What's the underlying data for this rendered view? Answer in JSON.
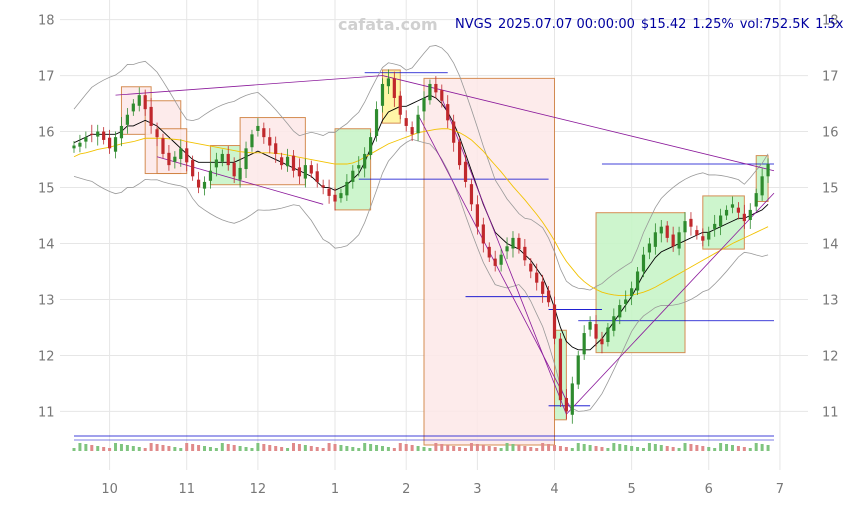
{
  "watermark": "cafata.com",
  "header": {
    "ticker": "NVGS",
    "datetime": "2025.07.07 00:00:00",
    "price": "$15.42",
    "change": "1.25%",
    "volume": "vol:752.5K",
    "ratio": "1.5x"
  },
  "colors": {
    "up": "#2e8b2e",
    "down": "#c0282c",
    "ma_short": "#000000",
    "ma_long": "#f2c200",
    "bollinger": "#999999",
    "trend": "#8b1a9b",
    "level": "#0000cc",
    "box_up_fill": "#c8f5c8",
    "box_down_fill": "#fde9e9",
    "box_neutral_fill": "#fff59e",
    "box_edge": "#d08040",
    "header_text": "#0000a0"
  },
  "chart_data": {
    "type": "candlestick",
    "ylim": [
      10.4,
      18.1
    ],
    "xlim": [
      0,
      118
    ],
    "y_ticks": [
      "11",
      "12",
      "13",
      "14",
      "15",
      "16",
      "17",
      "18"
    ],
    "y_tick_values": [
      11,
      12,
      13,
      14,
      15,
      16,
      17,
      18
    ],
    "x_ticks": [
      "10",
      "11",
      "12",
      "1",
      "2",
      "3",
      "4",
      "5",
      "6",
      "7"
    ],
    "x_tick_values": [
      6,
      19,
      31,
      44,
      56,
      68,
      81,
      94,
      107,
      119
    ],
    "grid": true,
    "close": [
      15.75,
      15.8,
      15.9,
      15.95,
      16.0,
      15.85,
      15.7,
      15.9,
      16.1,
      16.3,
      16.5,
      16.65,
      16.4,
      16.1,
      15.9,
      15.6,
      15.4,
      15.55,
      15.7,
      15.45,
      15.2,
      15.0,
      15.1,
      15.3,
      15.5,
      15.6,
      15.4,
      15.2,
      15.35,
      15.7,
      15.95,
      16.1,
      15.9,
      15.75,
      15.6,
      15.4,
      15.55,
      15.3,
      15.2,
      15.4,
      15.25,
      15.1,
      15.0,
      14.85,
      14.75,
      14.9,
      15.1,
      15.3,
      15.4,
      15.6,
      15.9,
      16.4,
      16.85,
      16.95,
      16.6,
      16.3,
      16.1,
      15.95,
      16.3,
      16.6,
      16.85,
      16.7,
      16.55,
      16.2,
      15.8,
      15.4,
      15.1,
      14.7,
      14.3,
      14.0,
      13.75,
      13.6,
      13.8,
      13.95,
      14.1,
      13.9,
      13.7,
      13.5,
      13.3,
      13.1,
      12.95,
      12.3,
      11.2,
      11.0,
      11.5,
      12.0,
      12.4,
      12.6,
      12.3,
      12.2,
      12.5,
      12.7,
      12.9,
      13.0,
      13.2,
      13.5,
      13.8,
      14.0,
      14.2,
      14.3,
      14.1,
      13.95,
      14.2,
      14.4,
      14.3,
      14.15,
      14.05,
      14.2,
      14.35,
      14.5,
      14.6,
      14.7,
      14.55,
      14.4,
      14.6,
      14.9,
      15.2,
      15.42
    ],
    "ma_short": [
      15.8,
      15.85,
      15.9,
      15.95,
      15.95,
      15.95,
      15.95,
      15.95,
      16.0,
      16.1,
      16.1,
      16.15,
      16.2,
      16.15,
      16.1,
      16.0,
      15.9,
      15.8,
      15.7,
      15.6,
      15.5,
      15.45,
      15.45,
      15.45,
      15.45,
      15.45,
      15.45,
      15.45,
      15.5,
      15.55,
      15.6,
      15.65,
      15.6,
      15.55,
      15.5,
      15.45,
      15.4,
      15.35,
      15.3,
      15.25,
      15.2,
      15.1,
      15.0,
      15.0,
      14.95,
      15.0,
      15.05,
      15.15,
      15.25,
      15.45,
      15.7,
      15.95,
      16.2,
      16.35,
      16.4,
      16.45,
      16.45,
      16.5,
      16.55,
      16.6,
      16.65,
      16.6,
      16.5,
      16.35,
      16.15,
      15.9,
      15.6,
      15.3,
      15.0,
      14.7,
      14.45,
      14.2,
      14.1,
      14.0,
      13.95,
      13.9,
      13.8,
      13.7,
      13.55,
      13.4,
      13.15,
      12.85,
      12.5,
      12.25,
      12.15,
      12.1,
      12.1,
      12.1,
      12.2,
      12.3,
      12.45,
      12.6,
      12.75,
      12.9,
      13.05,
      13.25,
      13.45,
      13.6,
      13.75,
      13.85,
      13.9,
      13.95,
      14.0,
      14.05,
      14.1,
      14.15,
      14.2,
      14.2,
      14.25,
      14.3,
      14.35,
      14.4,
      14.45,
      14.45,
      14.5,
      14.55,
      14.6,
      14.7
    ],
    "ma_long": [
      15.55,
      15.6,
      15.62,
      15.65,
      15.68,
      15.7,
      15.72,
      15.75,
      15.78,
      15.8,
      15.82,
      15.85,
      15.88,
      15.88,
      15.88,
      15.88,
      15.87,
      15.86,
      15.85,
      15.82,
      15.8,
      15.78,
      15.76,
      15.74,
      15.72,
      15.7,
      15.68,
      15.66,
      15.64,
      15.63,
      15.62,
      15.62,
      15.62,
      15.62,
      15.61,
      15.6,
      15.58,
      15.56,
      15.54,
      15.52,
      15.5,
      15.48,
      15.46,
      15.44,
      15.42,
      15.42,
      15.42,
      15.44,
      15.48,
      15.54,
      15.6,
      15.66,
      15.72,
      15.78,
      15.82,
      15.86,
      15.9,
      15.94,
      15.98,
      16.0,
      16.02,
      16.04,
      16.05,
      16.05,
      16.02,
      15.98,
      15.92,
      15.85,
      15.75,
      15.65,
      15.52,
      15.4,
      15.28,
      15.15,
      15.02,
      14.9,
      14.78,
      14.65,
      14.52,
      14.38,
      14.22,
      14.05,
      13.85,
      13.68,
      13.55,
      13.42,
      13.32,
      13.24,
      13.18,
      13.13,
      13.1,
      13.08,
      13.07,
      13.07,
      13.08,
      13.1,
      13.13,
      13.17,
      13.22,
      13.28,
      13.34,
      13.4,
      13.46,
      13.52,
      13.58,
      13.64,
      13.7,
      13.76,
      13.82,
      13.88,
      13.94,
      14.0,
      14.05,
      14.1,
      14.15,
      14.2,
      14.25,
      14.3
    ]
  }
}
